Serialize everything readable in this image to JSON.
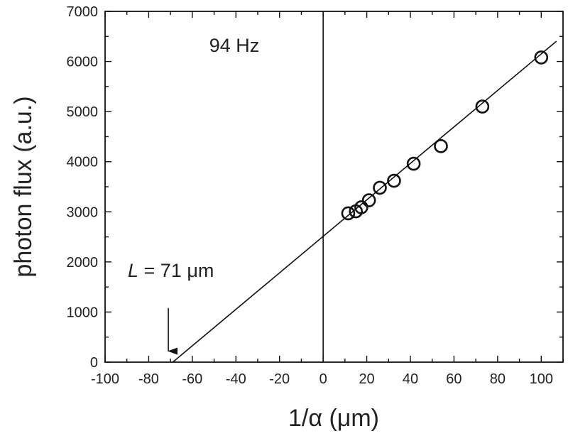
{
  "chart_data": {
    "type": "scatter",
    "xlabel": "1/α (μm)",
    "ylabel": "photon flux (a.u.)",
    "xlim": [
      -100,
      110
    ],
    "ylim": [
      0,
      7000
    ],
    "x_ticks": [
      -100,
      -80,
      -60,
      -40,
      -20,
      0,
      20,
      40,
      60,
      80,
      100
    ],
    "y_ticks": [
      0,
      1000,
      2000,
      3000,
      4000,
      5000,
      6000,
      7000
    ],
    "grid": false,
    "annotations": {
      "frequency": "94 Hz",
      "length_italic": "L",
      "length_rest": " = 71 μm"
    },
    "points": [
      {
        "x": 11.5,
        "y": 2970
      },
      {
        "x": 15,
        "y": 3010
      },
      {
        "x": 17.5,
        "y": 3090
      },
      {
        "x": 21,
        "y": 3230
      },
      {
        "x": 26,
        "y": 3480
      },
      {
        "x": 32.5,
        "y": 3620
      },
      {
        "x": 41.5,
        "y": 3960
      },
      {
        "x": 54,
        "y": 4310
      },
      {
        "x": 73,
        "y": 5100
      },
      {
        "x": 100,
        "y": 6080
      }
    ],
    "fit_line": {
      "x_start": -69,
      "x_end": 107,
      "intercept": 2510,
      "slope": 36.4
    },
    "marker_arrow": {
      "x": -71,
      "y_top": 1080,
      "y_bottom": 220
    },
    "vertical_reference_x": 0
  }
}
